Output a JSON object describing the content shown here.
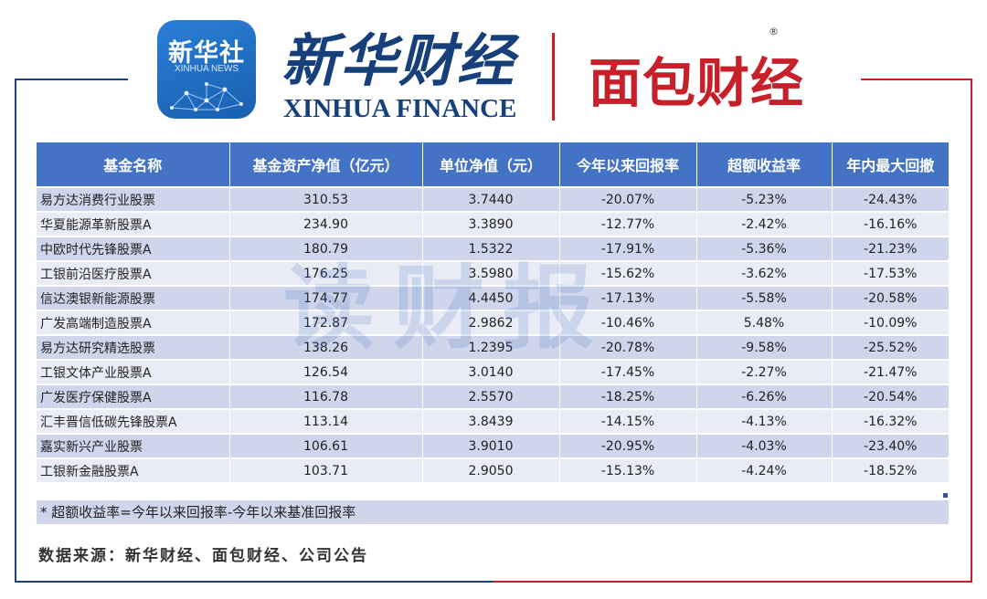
{
  "header": {
    "app_icon_cn": "新华社",
    "app_icon_en": "XINHUA NEWS",
    "brand_cn": "新华财经",
    "brand_en": "XINHUA FINANCE",
    "partner_cn": "面包财经",
    "registered_mark": "®",
    "accent_blue": "#17407a",
    "accent_red": "#c8202a"
  },
  "table": {
    "headers": [
      "基金名称",
      "基金资产净值（亿元）",
      "单位净值（元）",
      "今年以来回报率",
      "超额收益率",
      "年内最大回撤"
    ],
    "rows": [
      [
        "易方达消费行业股票",
        "310.53",
        "3.7440",
        "-20.07%",
        "-5.23%",
        "-24.43%"
      ],
      [
        "华夏能源革新股票A",
        "234.90",
        "3.3890",
        "-12.77%",
        "-2.42%",
        "-16.16%"
      ],
      [
        "中欧时代先锋股票A",
        "180.79",
        "1.5322",
        "-17.91%",
        "-5.36%",
        "-21.23%"
      ],
      [
        "工银前沿医疗股票A",
        "176.25",
        "3.5980",
        "-15.62%",
        "-3.62%",
        "-17.53%"
      ],
      [
        "信达澳银新能源股票",
        "174.77",
        "4.4450",
        "-17.13%",
        "-5.58%",
        "-20.58%"
      ],
      [
        "广发高端制造股票A",
        "172.87",
        "2.9862",
        "-10.46%",
        "5.48%",
        "-10.09%"
      ],
      [
        "易方达研究精选股票",
        "138.26",
        "1.2395",
        "-20.78%",
        "-9.58%",
        "-25.52%"
      ],
      [
        "工银文体产业股票A",
        "126.54",
        "3.0140",
        "-17.45%",
        "-2.27%",
        "-21.47%"
      ],
      [
        "广发医疗保健股票A",
        "116.78",
        "2.5570",
        "-18.25%",
        "-6.26%",
        "-20.54%"
      ],
      [
        "汇丰晋信低碳先锋股票A",
        "113.14",
        "3.8439",
        "-14.15%",
        "-4.13%",
        "-16.32%"
      ],
      [
        "嘉实新兴产业股票",
        "106.61",
        "3.9010",
        "-20.95%",
        "-4.03%",
        "-23.40%"
      ],
      [
        "工银新金融股票A",
        "103.71",
        "2.9050",
        "-15.13%",
        "-4.24%",
        "-18.52%"
      ]
    ]
  },
  "watermark": "读财报",
  "footnote": "* 超额收益率=今年以来回报率-今年以来基准回报率",
  "source": "数据来源：新华财经、面包财经、公司公告"
}
